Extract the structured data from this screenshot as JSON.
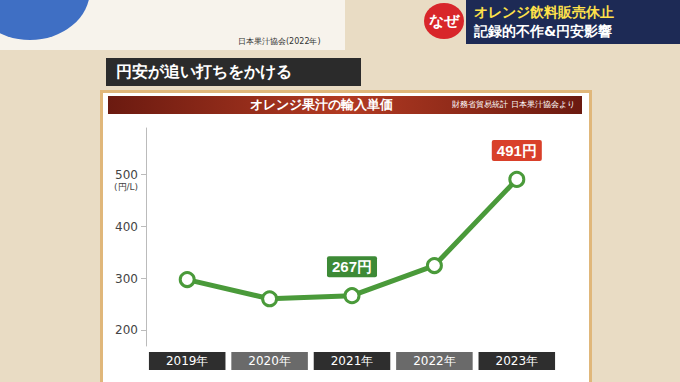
{
  "banner": {
    "badge": "なぜ",
    "lines": [
      "オレンジ飲料販売休止",
      "記録的不作&円安影響"
    ]
  },
  "section_title": "円安が追い打ちをかける",
  "top_source": "日本果汁協会(2022年)",
  "chart_data": {
    "type": "line",
    "title": "オレンジ果汁の輸入単価",
    "subtitle": "財務省貿易統計 日本果汁協会より",
    "y_label": "(円/L)",
    "categories": [
      "2019年",
      "2020年",
      "2021年",
      "2022年",
      "2023年"
    ],
    "values": [
      298,
      261,
      267,
      325,
      491
    ],
    "value_labels": [
      null,
      null,
      "267円",
      null,
      "491円"
    ],
    "data_labels": true,
    "color": "#4a9a3a",
    "marker": "circle",
    "ylim": [
      170,
      590
    ],
    "yticks": [
      200,
      300,
      400,
      500
    ],
    "grid": false
  }
}
